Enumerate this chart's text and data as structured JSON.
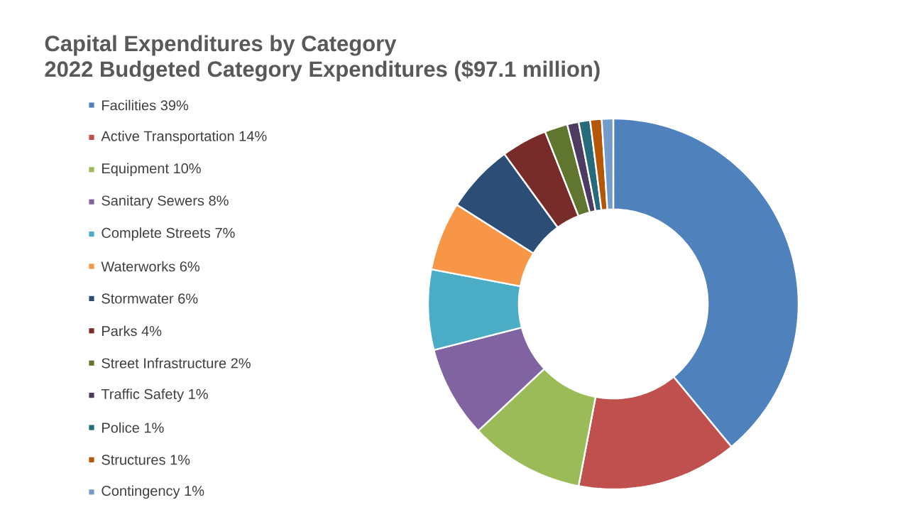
{
  "chart_data": {
    "type": "donut",
    "title": "Capital Expenditures by Category",
    "subtitle": "2022 Budgeted Category Expenditures ($97.1 million)",
    "categories": [
      "Facilities",
      "Active Transportation",
      "Equipment",
      "Sanitary Sewers",
      "Complete Streets",
      "Waterworks",
      "Stormwater",
      "Parks",
      "Street Infrastructure",
      "Traffic Safety",
      "Police",
      "Structures",
      "Contingency"
    ],
    "values": [
      39,
      14,
      10,
      8,
      7,
      6,
      6,
      4,
      2,
      1,
      1,
      1,
      1
    ],
    "value_labels": [
      "39%",
      "14%",
      "10%",
      "8%",
      "7%",
      "6%",
      "6%",
      "4%",
      "2%",
      "1%",
      "1%",
      "1%",
      "1%"
    ],
    "colors": [
      "#4f81bd",
      "#c0504d",
      "#9bbb59",
      "#8064a2",
      "#4bacc6",
      "#f79646",
      "#2c4d75",
      "#772c2a",
      "#5f7530",
      "#4d3b62",
      "#276a7c",
      "#b65708",
      "#729aca"
    ],
    "legend": "left"
  }
}
